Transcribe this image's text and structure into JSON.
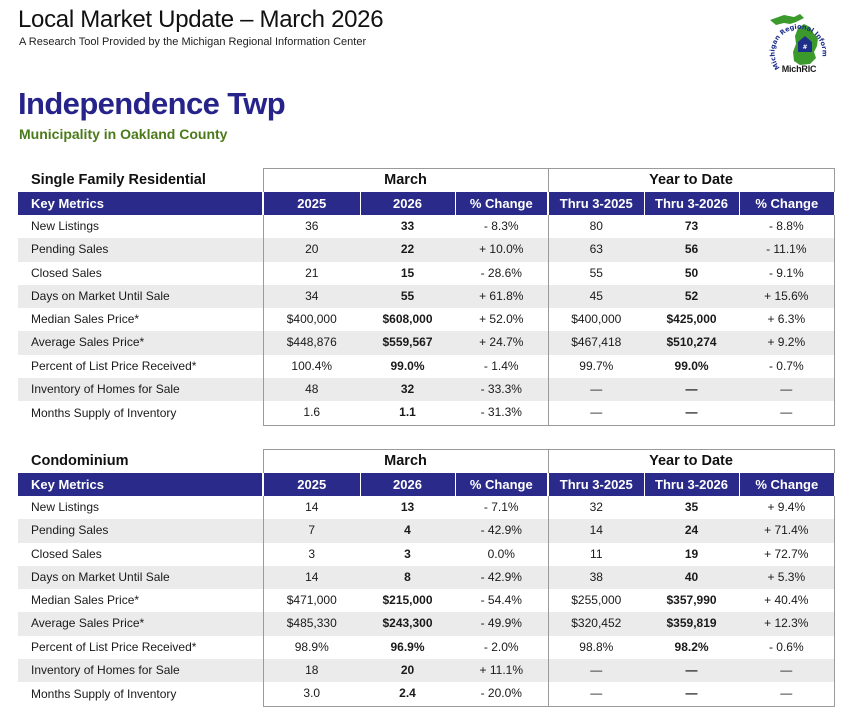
{
  "header": {
    "title": "Local Market Update – March 2026",
    "subtitle": "A Research Tool Provided by the Michigan Regional Information Center"
  },
  "logo": {
    "ring_text": "Michigan Regional Information Center",
    "brand": "MichRIC",
    "colors": {
      "green": "#3c9a2c",
      "blue": "#1e2f8a"
    }
  },
  "area": {
    "name": "Independence Twp",
    "description": "Municipality in Oakland County"
  },
  "column_groups": {
    "month": "March",
    "ytd": "Year to Date"
  },
  "columns": [
    "Key Metrics",
    "2025",
    "2026",
    "% Change",
    "Thru 3-2025",
    "Thru 3-2026",
    "% Change"
  ],
  "sections": [
    {
      "label": "Single Family Residential",
      "rows": [
        {
          "metric": "New Listings",
          "m2025": "36",
          "m2026": "33",
          "mchg": "- 8.3%",
          "y2025": "80",
          "y2026": "73",
          "ychg": "- 8.8%"
        },
        {
          "metric": "Pending Sales",
          "m2025": "20",
          "m2026": "22",
          "mchg": "+ 10.0%",
          "y2025": "63",
          "y2026": "56",
          "ychg": "- 11.1%"
        },
        {
          "metric": "Closed Sales",
          "m2025": "21",
          "m2026": "15",
          "mchg": "- 28.6%",
          "y2025": "55",
          "y2026": "50",
          "ychg": "- 9.1%"
        },
        {
          "metric": "Days on Market Until Sale",
          "m2025": "34",
          "m2026": "55",
          "mchg": "+ 61.8%",
          "y2025": "45",
          "y2026": "52",
          "ychg": "+ 15.6%"
        },
        {
          "metric": "Median Sales Price*",
          "m2025": "$400,000",
          "m2026": "$608,000",
          "mchg": "+ 52.0%",
          "y2025": "$400,000",
          "y2026": "$425,000",
          "ychg": "+ 6.3%"
        },
        {
          "metric": "Average Sales Price*",
          "m2025": "$448,876",
          "m2026": "$559,567",
          "mchg": "+ 24.7%",
          "y2025": "$467,418",
          "y2026": "$510,274",
          "ychg": "+ 9.2%"
        },
        {
          "metric": "Percent of List Price Received*",
          "m2025": "100.4%",
          "m2026": "99.0%",
          "mchg": "- 1.4%",
          "y2025": "99.7%",
          "y2026": "99.0%",
          "ychg": "- 0.7%"
        },
        {
          "metric": "Inventory of Homes for Sale",
          "m2025": "48",
          "m2026": "32",
          "mchg": "- 33.3%",
          "y2025": "—",
          "y2026": "—",
          "ychg": "—"
        },
        {
          "metric": "Months Supply of Inventory",
          "m2025": "1.6",
          "m2026": "1.1",
          "mchg": "- 31.3%",
          "y2025": "—",
          "y2026": "—",
          "ychg": "—"
        }
      ]
    },
    {
      "label": "Condominium",
      "rows": [
        {
          "metric": "New Listings",
          "m2025": "14",
          "m2026": "13",
          "mchg": "- 7.1%",
          "y2025": "32",
          "y2026": "35",
          "ychg": "+ 9.4%"
        },
        {
          "metric": "Pending Sales",
          "m2025": "7",
          "m2026": "4",
          "mchg": "- 42.9%",
          "y2025": "14",
          "y2026": "24",
          "ychg": "+ 71.4%"
        },
        {
          "metric": "Closed Sales",
          "m2025": "3",
          "m2026": "3",
          "mchg": "0.0%",
          "y2025": "11",
          "y2026": "19",
          "ychg": "+ 72.7%"
        },
        {
          "metric": "Days on Market Until Sale",
          "m2025": "14",
          "m2026": "8",
          "mchg": "- 42.9%",
          "y2025": "38",
          "y2026": "40",
          "ychg": "+ 5.3%"
        },
        {
          "metric": "Median Sales Price*",
          "m2025": "$471,000",
          "m2026": "$215,000",
          "mchg": "- 54.4%",
          "y2025": "$255,000",
          "y2026": "$357,990",
          "ychg": "+ 40.4%"
        },
        {
          "metric": "Average Sales Price*",
          "m2025": "$485,330",
          "m2026": "$243,300",
          "mchg": "- 49.9%",
          "y2025": "$320,452",
          "y2026": "$359,819",
          "ychg": "+ 12.3%"
        },
        {
          "metric": "Percent of List Price Received*",
          "m2025": "98.9%",
          "m2026": "96.9%",
          "mchg": "- 2.0%",
          "y2025": "98.8%",
          "y2026": "98.2%",
          "ychg": "- 0.6%"
        },
        {
          "metric": "Inventory of Homes for Sale",
          "m2025": "18",
          "m2026": "20",
          "mchg": "+ 11.1%",
          "y2025": "—",
          "y2026": "—",
          "ychg": "—"
        },
        {
          "metric": "Months Supply of Inventory",
          "m2025": "3.0",
          "m2026": "2.4",
          "mchg": "- 20.0%",
          "y2025": "—",
          "y2026": "—",
          "ychg": "—"
        }
      ]
    }
  ]
}
